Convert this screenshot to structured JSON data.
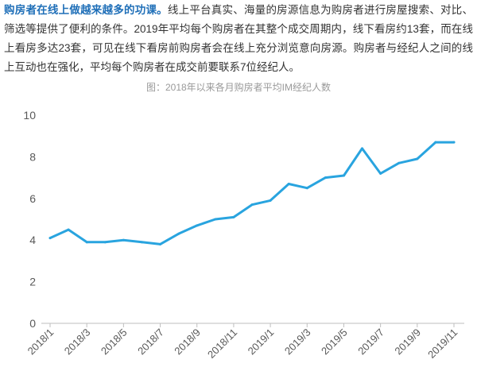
{
  "article": {
    "lead": "购房者在线上做越来越多的功课。",
    "body": "线上平台真实、海量的房源信息为购房者进行房屋搜索、对比、筛选等提供了便利的条件。2019年平均每个购房者在其整个成交周期内，线下看房约13套，而在线上看房多达23套，可见在线下看房前购房者会在线上充分浏览意向房源。购房者与经纪人之间的线上互动也在强化，平均每个购房者在成交前要联系7位经纪人。",
    "lead_color": "#1f6fb8",
    "text_color": "#333333"
  },
  "chart_data": {
    "type": "line",
    "title": "图：2018年以来各月购房者平均IM经纪人数",
    "x": [
      "2018/1",
      "2018/2",
      "2018/3",
      "2018/4",
      "2018/5",
      "2018/6",
      "2018/7",
      "2018/8",
      "2018/9",
      "2018/10",
      "2018/11",
      "2018/12",
      "2019/1",
      "2019/2",
      "2019/3",
      "2019/4",
      "2019/5",
      "2019/6",
      "2019/7",
      "2019/8",
      "2019/9",
      "2019/10",
      "2019/11"
    ],
    "xticks": [
      "2018/1",
      "2018/3",
      "2018/5",
      "2018/7",
      "2018/9",
      "2018/11",
      "2019/1",
      "2019/3",
      "2019/5",
      "2019/7",
      "2019/9",
      "2019/11"
    ],
    "y_ticks": [
      0,
      2,
      4,
      6,
      8,
      10
    ],
    "ylim": [
      0,
      10
    ],
    "grid": false,
    "legend": "none",
    "series": [
      {
        "values": [
          4.1,
          4.5,
          3.9,
          3.9,
          4.0,
          3.9,
          3.8,
          4.3,
          4.7,
          5.0,
          5.1,
          5.7,
          5.9,
          6.7,
          6.5,
          7.0,
          7.1,
          8.4,
          7.2,
          7.7,
          7.9,
          8.7,
          8.7
        ],
        "color": "#29a4df"
      }
    ],
    "axis_color": "#bfbfbf",
    "label_color": "#595959"
  }
}
